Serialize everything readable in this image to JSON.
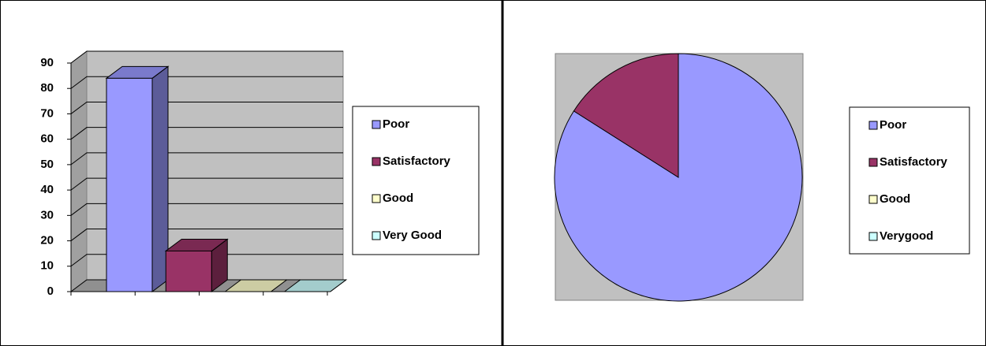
{
  "chart_data": [
    {
      "type": "bar3d",
      "categories": [
        "Poor",
        "Satisfactory",
        "Good",
        "Very Good"
      ],
      "values": [
        84,
        16,
        0,
        0
      ],
      "colors": [
        "#9999ff",
        "#993366",
        "#ffffcc",
        "#ccffff"
      ],
      "ylim": [
        0,
        90
      ],
      "yticks": [
        0,
        10,
        20,
        30,
        40,
        50,
        60,
        70,
        80,
        90
      ],
      "grid": true,
      "legend": "right"
    },
    {
      "type": "pie",
      "categories": [
        "Poor",
        "Satisfactory",
        "Good",
        "Verygood"
      ],
      "values": [
        84,
        16,
        0,
        0
      ],
      "colors": [
        "#9999ff",
        "#993366",
        "#ffffcc",
        "#ccffff"
      ],
      "legend": "right"
    }
  ]
}
